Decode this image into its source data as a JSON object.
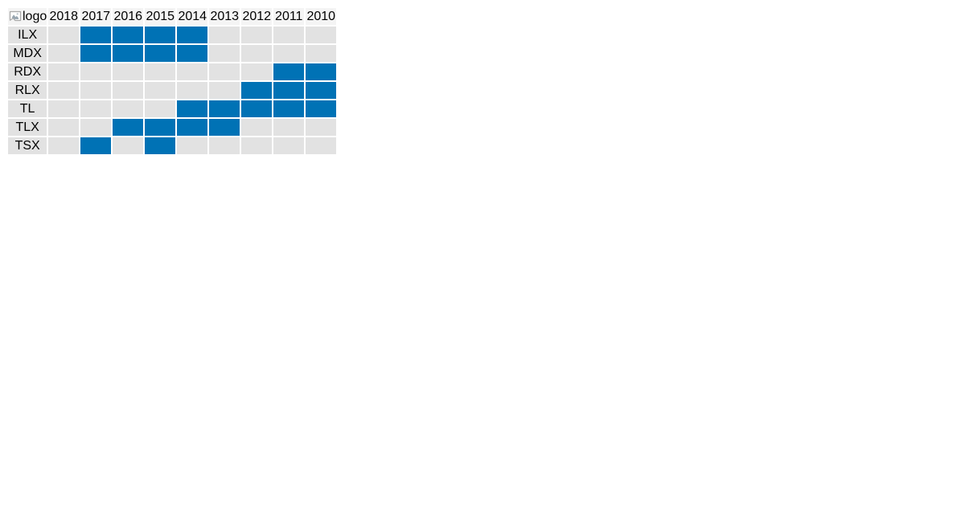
{
  "header": {
    "logo_alt": "logo"
  },
  "colors": {
    "filled": "#0072b5",
    "empty": "#e2e2e2",
    "header_bg": "#f4f4f4",
    "gap": "#ffffff",
    "page_bg": "#ffffff",
    "text": "#000000",
    "broken_icon_border": "#a9a9a9",
    "broken_icon_fill": "#97a5b0"
  },
  "chart_data": {
    "type": "heatmap",
    "x": [
      "2018",
      "2017",
      "2016",
      "2015",
      "2014",
      "2013",
      "2012",
      "2011",
      "2010"
    ],
    "y": [
      "ILX",
      "MDX",
      "RDX",
      "RLX",
      "TL",
      "TLX",
      "TSX"
    ],
    "values": [
      [
        0,
        1,
        1,
        1,
        1,
        0,
        0,
        0,
        0
      ],
      [
        0,
        1,
        1,
        1,
        1,
        0,
        0,
        0,
        0
      ],
      [
        0,
        0,
        0,
        0,
        0,
        0,
        0,
        1,
        1
      ],
      [
        0,
        0,
        0,
        0,
        0,
        0,
        1,
        1,
        1
      ],
      [
        0,
        0,
        0,
        0,
        1,
        1,
        1,
        1,
        1
      ],
      [
        0,
        0,
        1,
        1,
        1,
        1,
        0,
        0,
        0
      ],
      [
        0,
        1,
        0,
        1,
        0,
        0,
        0,
        0,
        0
      ]
    ],
    "value_legend": {
      "1": "filled (blue cell)",
      "0": "empty (gray cell)"
    },
    "cell_colors": {
      "1": "#0072b5",
      "0": "#e2e2e2"
    },
    "x_header_row": true,
    "grid": "2px white spacing between cells",
    "legend_position": "none"
  }
}
